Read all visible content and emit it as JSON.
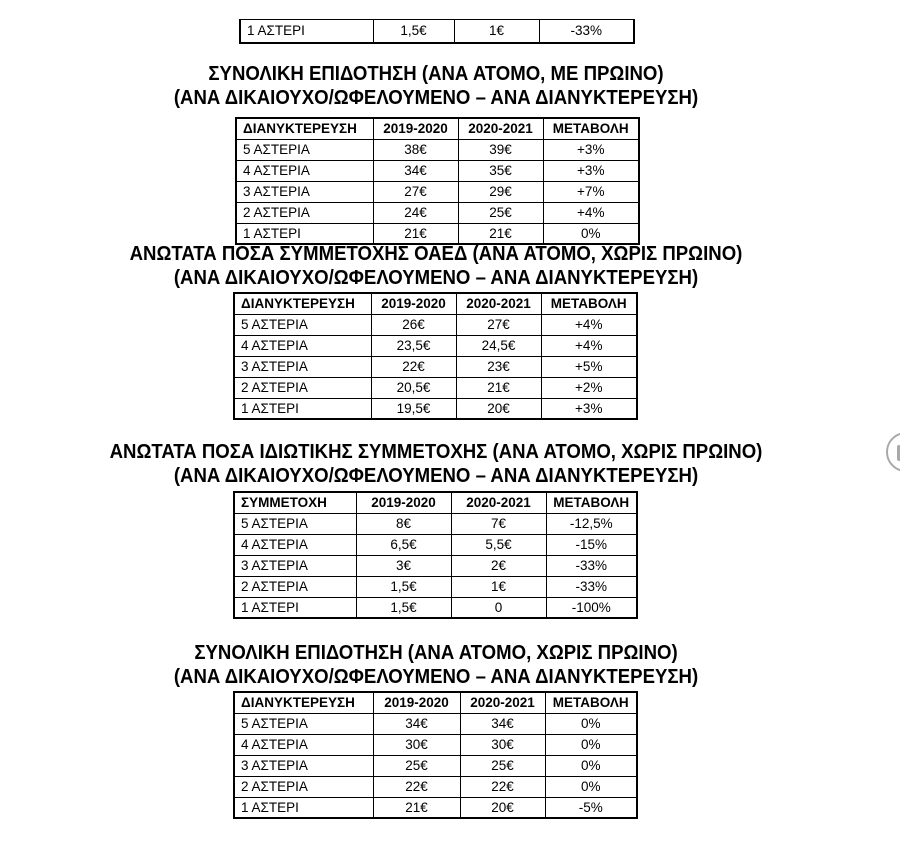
{
  "document": {
    "background_color": "#ffffff",
    "text_color": "#000000",
    "table_border_color": "#000000"
  },
  "partial_table": {
    "rows": [
      [
        "1 ΑΣΤΕΡΙ",
        "1,5€",
        "1€",
        "-33%"
      ]
    ]
  },
  "sections": [
    {
      "title_line1": "ΣΥΝΟΛΙΚΗ ΕΠΙΔΟΤΗΣΗ (ΑΝΑ ΑΤΟΜΟ, ΜΕ ΠΡΩΙΝΟ)",
      "title_line2": "(ΑΝΑ ΔΙΚΑΙΟΥΧΟ/ΩΦΕΛΟΥΜΕΝΟ – ΑΝΑ ΔΙΑΝΥΚΤΕΡΕΥΣΗ)",
      "table": {
        "headers": [
          "ΔΙΑΝΥΚΤΕΡΕΥΣΗ",
          "2019-2020",
          "2020-2021",
          "ΜΕΤΑΒΟΛΗ"
        ],
        "rows": [
          [
            "5 ΑΣΤΕΡΙΑ",
            "38€",
            "39€",
            "+3%"
          ],
          [
            "4 ΑΣΤΕΡΙΑ",
            "34€",
            "35€",
            "+3%"
          ],
          [
            "3 ΑΣΤΕΡΙΑ",
            "27€",
            "29€",
            "+7%"
          ],
          [
            "2 ΑΣΤΕΡΙΑ",
            "24€",
            "25€",
            "+4%"
          ],
          [
            "1 ΑΣΤΕΡΙ",
            "21€",
            "21€",
            "0%"
          ]
        ]
      }
    },
    {
      "title_line1": "ΑΝΩΤΑΤΑ ΠΟΣΑ ΣΥΜΜΕΤΟΧΗΣ ΟΑΕΔ (ΑΝΑ ΑΤΟΜΟ, ΧΩΡΙΣ ΠΡΩΙΝΟ)",
      "title_line2": "(ΑΝΑ ΔΙΚΑΙΟΥΧΟ/ΩΦΕΛΟΥΜΕΝΟ – ΑΝΑ ΔΙΑΝΥΚΤΕΡΕΥΣΗ)",
      "table": {
        "headers": [
          "ΔΙΑΝΥΚΤΕΡΕΥΣΗ",
          "2019-2020",
          "2020-2021",
          "ΜΕΤΑΒΟΛΗ"
        ],
        "rows": [
          [
            "5 ΑΣΤΕΡΙΑ",
            "26€",
            "27€",
            "+4%"
          ],
          [
            "4 ΑΣΤΕΡΙΑ",
            "23,5€",
            "24,5€",
            "+4%"
          ],
          [
            "3 ΑΣΤΕΡΙΑ",
            "22€",
            "23€",
            "+5%"
          ],
          [
            "2 ΑΣΤΕΡΙΑ",
            "20,5€",
            "21€",
            "+2%"
          ],
          [
            "1 ΑΣΤΕΡΙ",
            "19,5€",
            "20€",
            "+3%"
          ]
        ]
      }
    },
    {
      "title_line1": "ΑΝΩΤΑΤΑ ΠΟΣΑ ΙΔΙΩΤΙΚΗΣ ΣΥΜΜΕΤΟΧΗΣ (ΑΝΑ ΑΤΟΜΟ, ΧΩΡΙΣ ΠΡΩΙΝΟ)",
      "title_line2": "(ΑΝΑ ΔΙΚΑΙΟΥΧΟ/ΩΦΕΛΟΥΜΕΝΟ – ΑΝΑ ΔΙΑΝΥΚΤΕΡΕΥΣΗ)",
      "table": {
        "headers": [
          "ΣΥΜΜΕΤΟΧΗ",
          "2019-2020",
          "2020-2021",
          "ΜΕΤΑΒΟΛΗ"
        ],
        "rows": [
          [
            "5 ΑΣΤΕΡΙΑ",
            "8€",
            "7€",
            "-12,5%"
          ],
          [
            "4 ΑΣΤΕΡΙΑ",
            "6,5€",
            "5,5€",
            "-15%"
          ],
          [
            "3 ΑΣΤΕΡΙΑ",
            "3€",
            "2€",
            "-33%"
          ],
          [
            "2 ΑΣΤΕΡΙΑ",
            "1,5€",
            "1€",
            "-33%"
          ],
          [
            "1 ΑΣΤΕΡΙ",
            "1,5€",
            "0",
            "-100%"
          ]
        ]
      }
    },
    {
      "title_line1": "ΣΥΝΟΛΙΚΗ ΕΠΙΔΟΤΗΣΗ (ΑΝΑ ΑΤΟΜΟ, ΧΩΡΙΣ ΠΡΩΙΝΟ)",
      "title_line2": "(ΑΝΑ ΔΙΚΑΙΟΥΧΟ/ΩΦΕΛΟΥΜΕΝΟ – ΑΝΑ ΔΙΑΝΥΚΤΕΡΕΥΣΗ)",
      "table": {
        "headers": [
          "ΔΙΑΝΥΚΤΕΡΕΥΣΗ",
          "2019-2020",
          "2020-2021",
          "ΜΕΤΑΒΟΛΗ"
        ],
        "rows": [
          [
            "5 ΑΣΤΕΡΙΑ",
            "34€",
            "34€",
            "0%"
          ],
          [
            "4 ΑΣΤΕΡΙΑ",
            "30€",
            "30€",
            "0%"
          ],
          [
            "3 ΑΣΤΕΡΙΑ",
            "25€",
            "25€",
            "0%"
          ],
          [
            "2 ΑΣΤΕΡΙΑ",
            "22€",
            "22€",
            "0%"
          ],
          [
            "1 ΑΣΤΕΡΙ",
            "21€",
            "20€",
            "-5%"
          ]
        ]
      }
    }
  ],
  "side_button": {
    "ring_color": "#a9a9a9",
    "icon": "page-indicator-icon"
  }
}
